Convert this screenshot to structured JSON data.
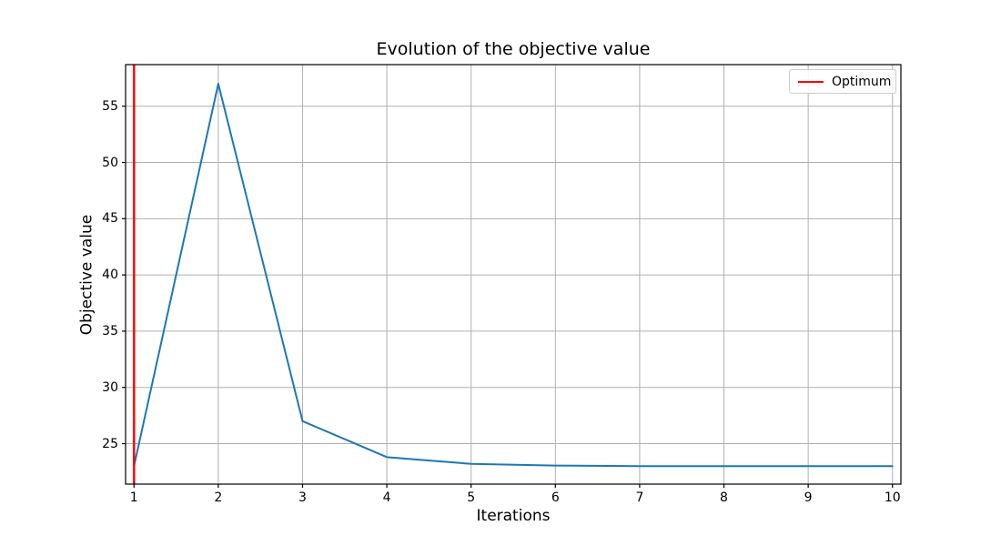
{
  "figure": {
    "background": "#ffffff"
  },
  "chart_data": {
    "type": "line",
    "title": "Evolution of the objective value",
    "xlabel": "Iterations",
    "ylabel": "Objective value",
    "x": [
      1,
      2,
      3,
      4,
      5,
      6,
      7,
      8,
      9,
      10
    ],
    "series": [
      {
        "color": "#1f77b4",
        "values": [
          23.0,
          57.0,
          27.0,
          23.8,
          23.2,
          23.05,
          23.0,
          23.0,
          23.0,
          23.0
        ]
      }
    ],
    "vline": {
      "x": 1,
      "color": "#ff0000"
    },
    "xticks": [
      1,
      2,
      3,
      4,
      5,
      6,
      7,
      8,
      9,
      10
    ],
    "yticks": [
      25,
      30,
      35,
      40,
      45,
      50,
      55
    ],
    "xlim": [
      0.9,
      10.1
    ],
    "ylim": [
      21.4,
      58.7
    ],
    "grid": true,
    "legend": {
      "position": "upper right",
      "entries": [
        {
          "label": "Optimum",
          "color": "#ff0000"
        }
      ]
    },
    "colors": {
      "grid": "#b0b0b0",
      "spine": "#000000",
      "background": "#ffffff"
    }
  }
}
